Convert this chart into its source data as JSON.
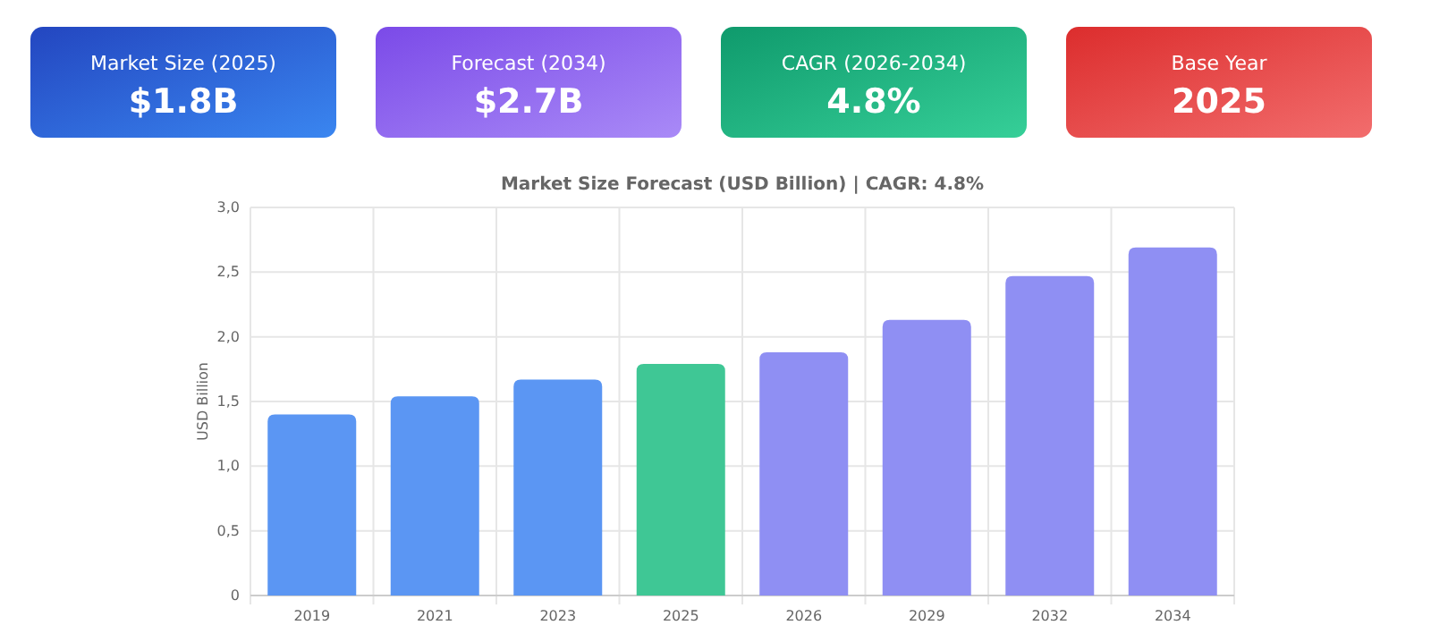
{
  "chart_data": [
    {
      "type": "other",
      "title": "Market Size (2025)",
      "annotations": [
        "$1.8B"
      ]
    },
    {
      "type": "other",
      "title": "Forecast (2034)",
      "annotations": [
        "$2.7B"
      ]
    },
    {
      "type": "other",
      "title": "CAGR (2026-2034)",
      "annotations": [
        "4.8%"
      ]
    },
    {
      "type": "other",
      "title": "Base Year",
      "annotations": [
        "2025"
      ]
    },
    {
      "type": "bar",
      "title": "Market Size Forecast (USD Billion) | CAGR: 4.8%",
      "ylabel": "USD Billion",
      "categories": [
        "2019",
        "2021",
        "2023",
        "2025",
        "2026",
        "2029",
        "2032",
        "2034"
      ],
      "values": [
        1.4,
        1.54,
        1.67,
        1.79,
        1.88,
        2.13,
        2.47,
        2.69
      ],
      "colors": [
        "#5b96f3",
        "#5b96f3",
        "#5b96f3",
        "#3fc795",
        "#8f8ff3",
        "#8f8ff3",
        "#8f8ff3",
        "#8f8ff3"
      ],
      "ylim": [
        0,
        3
      ],
      "yticks": [
        0,
        {
          "value": 0.5,
          "label": "0,5"
        },
        {
          "value": 1,
          "label": "1,0"
        },
        {
          "value": 1.5,
          "label": "1,5"
        },
        {
          "value": 2,
          "label": "2,0"
        },
        {
          "value": 2.5,
          "label": "2,5"
        },
        {
          "value": 3,
          "label": "3,0"
        }
      ],
      "grid": true
    }
  ]
}
